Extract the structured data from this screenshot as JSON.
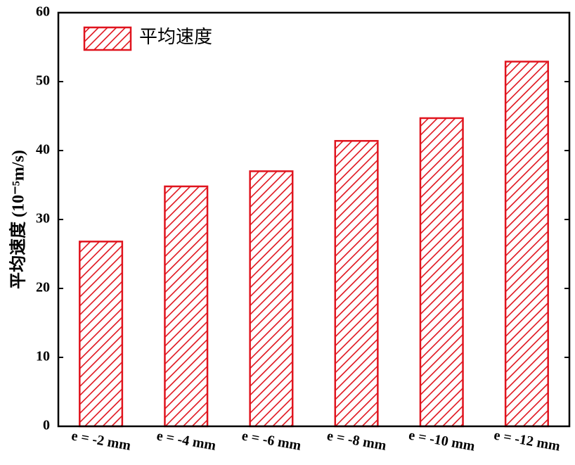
{
  "chart_data": {
    "type": "bar",
    "y_label": "平均速度 (10⁻⁵m/s)",
    "categories": [
      "e = -2 mm",
      "e = -4 mm",
      "e = -6 mm",
      "e = -8 mm",
      "e = -10 mm",
      "e = -12 mm"
    ],
    "series": [
      {
        "name": "平均速度",
        "color": "#e0141e",
        "values": [
          26.8,
          34.8,
          37.0,
          41.4,
          44.7,
          52.9
        ]
      }
    ],
    "ylim": [
      0,
      60
    ],
    "yticks": [
      0,
      10,
      20,
      30,
      40,
      50,
      60
    ],
    "legend": "upper left",
    "hatch": true
  }
}
